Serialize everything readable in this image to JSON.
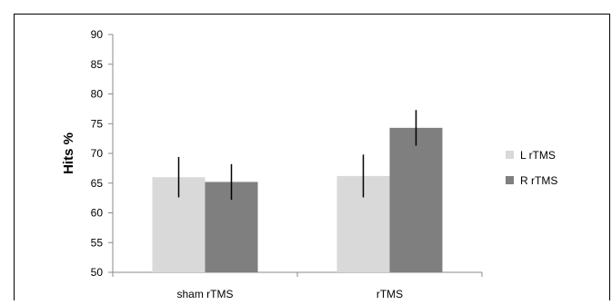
{
  "chart_data": {
    "type": "bar",
    "title": "",
    "xlabel": "",
    "ylabel": "Hits %",
    "categories": [
      "sham rTMS",
      "rTMS"
    ],
    "series": [
      {
        "name": "L rTMS",
        "color": "#d9d9d9",
        "values": [
          66.0,
          66.2
        ],
        "error": [
          3.4,
          3.6
        ]
      },
      {
        "name": "R rTMS",
        "color": "#7f7f7f",
        "values": [
          65.2,
          74.3
        ],
        "error": [
          3.0,
          3.0
        ]
      }
    ],
    "ylim": [
      50,
      90
    ],
    "yticks": [
      50,
      55,
      60,
      65,
      70,
      75,
      80,
      85,
      90
    ],
    "grid": false,
    "legend": "right"
  }
}
